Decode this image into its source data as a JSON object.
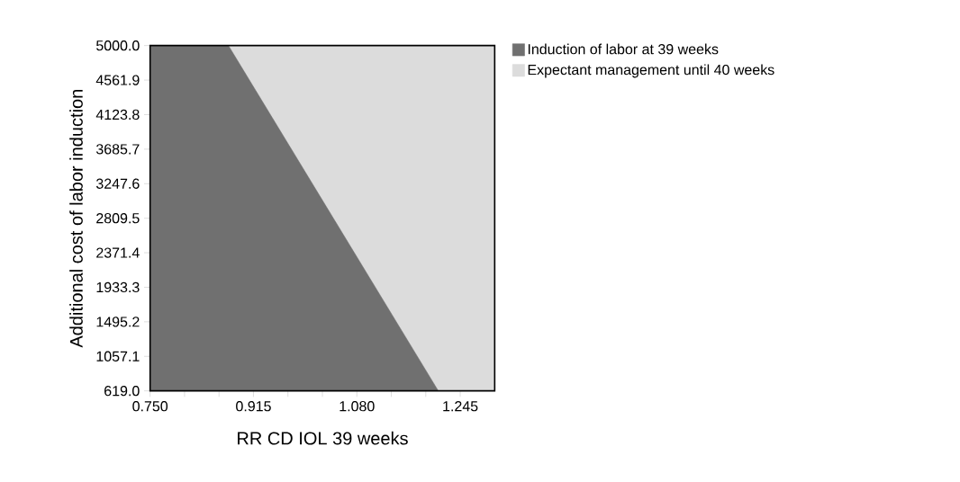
{
  "chart_data": {
    "type": "area",
    "xlabel": "RR CD IOL 39 weeks",
    "ylabel": "Additional cost of labor induction",
    "series": [
      {
        "name": "Induction of labor at 39 weeks",
        "color": "#707070",
        "x": [
          0.75,
          0.875,
          1.21,
          1.3
        ],
        "values": [
          5000,
          5000,
          619,
          619
        ]
      },
      {
        "name": "Expectant management until 40 weeks",
        "color": "#dcdcdc",
        "x": [
          0.875,
          1.3
        ],
        "values": [
          5000,
          5000
        ]
      }
    ],
    "xlim": [
      0.75,
      1.3
    ],
    "ylim": [
      619,
      5000
    ],
    "xticks": [
      {
        "value": 0.75,
        "label": "0.750"
      },
      {
        "value": 0.805,
        "label": null
      },
      {
        "value": 0.86,
        "label": null
      },
      {
        "value": 0.915,
        "label": "0.915"
      },
      {
        "value": 0.97,
        "label": null
      },
      {
        "value": 1.025,
        "label": null
      },
      {
        "value": 1.08,
        "label": "1.080"
      },
      {
        "value": 1.135,
        "label": null
      },
      {
        "value": 1.19,
        "label": null
      },
      {
        "value": 1.245,
        "label": "1.245"
      }
    ],
    "yticks": [
      {
        "value": 619,
        "label": "619.0"
      },
      {
        "value": 1057.1,
        "label": "1057.1"
      },
      {
        "value": 1495.2,
        "label": "1495.2"
      },
      {
        "value": 1933.3,
        "label": "1933.3"
      },
      {
        "value": 2371.4,
        "label": "2371.4"
      },
      {
        "value": 2809.5,
        "label": "2809.5"
      },
      {
        "value": 3247.6,
        "label": "3247.6"
      },
      {
        "value": 3685.7,
        "label": "3685.7"
      },
      {
        "value": 4123.8,
        "label": "4123.8"
      },
      {
        "value": 4561.9,
        "label": "4561.9"
      },
      {
        "value": 5000,
        "label": "5000.0"
      }
    ],
    "legend": "top right"
  }
}
